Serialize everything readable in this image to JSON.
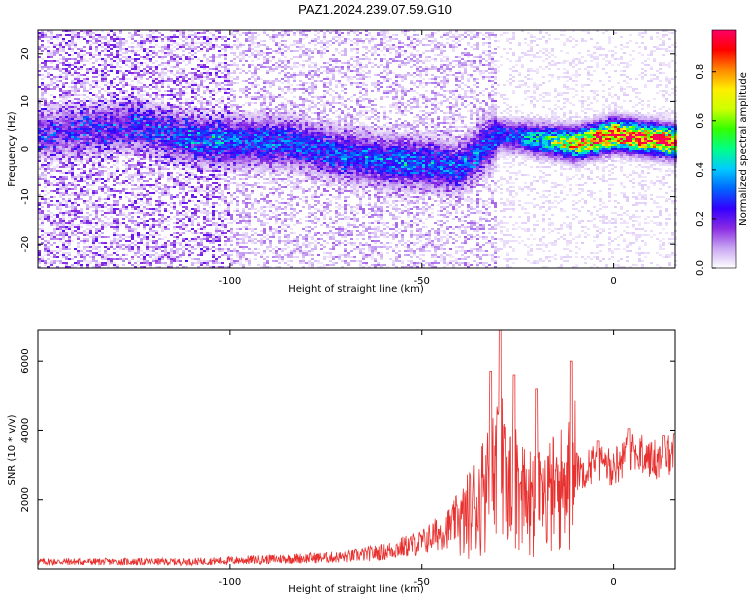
{
  "title": "PAZ1.2024.239.07.59.G10",
  "colors": {
    "snr_line": "#e8312f",
    "axes": "#000000"
  },
  "chart_data": [
    {
      "type": "heatmap",
      "xlabel": "Height of straight line (km)",
      "ylabel": "Frequency (Hz)",
      "xlim": [
        -150,
        16
      ],
      "ylim": [
        -25,
        25
      ],
      "xticks": [
        -100,
        -50,
        0
      ],
      "yticks": [
        -20,
        -10,
        0,
        10,
        20
      ],
      "colorbar": {
        "label": "Normalized spectral amplitude",
        "range": [
          0,
          0.97
        ],
        "ticks": [
          0.0,
          0.2,
          0.4,
          0.6,
          0.8
        ],
        "colormap": [
          "#ffffff",
          "#c9a6f2",
          "#8a2be2",
          "#3300ff",
          "#0066ff",
          "#00ccff",
          "#00ff88",
          "#33ff00",
          "#ccff00",
          "#ffee00",
          "#ff8800",
          "#ff0000",
          "#ff0066"
        ]
      },
      "ridge": [
        {
          "x": -150,
          "y": 3
        },
        {
          "x": -125,
          "y": 5
        },
        {
          "x": -110,
          "y": 2
        },
        {
          "x": -100,
          "y": 1.5
        },
        {
          "x": -85,
          "y": 1.5
        },
        {
          "x": -72,
          "y": -1
        },
        {
          "x": -60,
          "y": -2.5
        },
        {
          "x": -50,
          "y": -3
        },
        {
          "x": -40,
          "y": -4
        },
        {
          "x": -30,
          "y": 3
        },
        {
          "x": -20,
          "y": 2
        },
        {
          "x": -10,
          "y": 1
        },
        {
          "x": 0,
          "y": 3
        },
        {
          "x": 16,
          "y": 1.5
        }
      ],
      "ridge_amplitude": [
        {
          "x": -150,
          "a": 0.15
        },
        {
          "x": -120,
          "a": 0.2
        },
        {
          "x": -100,
          "a": 0.28
        },
        {
          "x": -75,
          "a": 0.25
        },
        {
          "x": -55,
          "a": 0.3
        },
        {
          "x": -40,
          "a": 0.25
        },
        {
          "x": -25,
          "a": 0.3
        },
        {
          "x": -15,
          "a": 0.55
        },
        {
          "x": -5,
          "a": 0.85
        },
        {
          "x": 2,
          "a": 0.95
        },
        {
          "x": 14,
          "a": 0.9
        }
      ]
    },
    {
      "type": "line",
      "xlabel": "Height of straight line (km)",
      "ylabel": "SNR (10 * v/v)",
      "xlim": [
        -150,
        16
      ],
      "ylim": [
        0,
        6900
      ],
      "xticks": [
        -100,
        -50,
        0
      ],
      "yticks": [
        2000,
        4000,
        6000
      ],
      "series": [
        {
          "baseline": [
            {
              "x": -150,
              "y": 150
            },
            {
              "x": -110,
              "y": 150
            },
            {
              "x": -90,
              "y": 200
            },
            {
              "x": -70,
              "y": 250
            },
            {
              "x": -60,
              "y": 350
            },
            {
              "x": -50,
              "y": 550
            },
            {
              "x": -42,
              "y": 900
            },
            {
              "x": -38,
              "y": 1400
            },
            {
              "x": -34,
              "y": 2000
            },
            {
              "x": -31,
              "y": 2400
            },
            {
              "x": -28,
              "y": 2200
            },
            {
              "x": -25,
              "y": 1800
            },
            {
              "x": -20,
              "y": 1700
            },
            {
              "x": -15,
              "y": 2000
            },
            {
              "x": -12,
              "y": 2200
            },
            {
              "x": -10,
              "y": 2600
            },
            {
              "x": -5,
              "y": 2900
            },
            {
              "x": 0,
              "y": 2800
            },
            {
              "x": 5,
              "y": 3200
            },
            {
              "x": 10,
              "y": 3000
            },
            {
              "x": 16,
              "y": 3200
            }
          ],
          "peaks": [
            {
              "x": -32,
              "y": 5700
            },
            {
              "x": -29.5,
              "y": 6900
            },
            {
              "x": -26,
              "y": 5600
            },
            {
              "x": -20,
              "y": 5200
            },
            {
              "x": -11,
              "y": 6000
            },
            {
              "x": -4,
              "y": 3700
            },
            {
              "x": 4,
              "y": 4050
            },
            {
              "x": 13,
              "y": 3850
            },
            {
              "x": 16,
              "y": 3900
            }
          ]
        }
      ]
    }
  ]
}
